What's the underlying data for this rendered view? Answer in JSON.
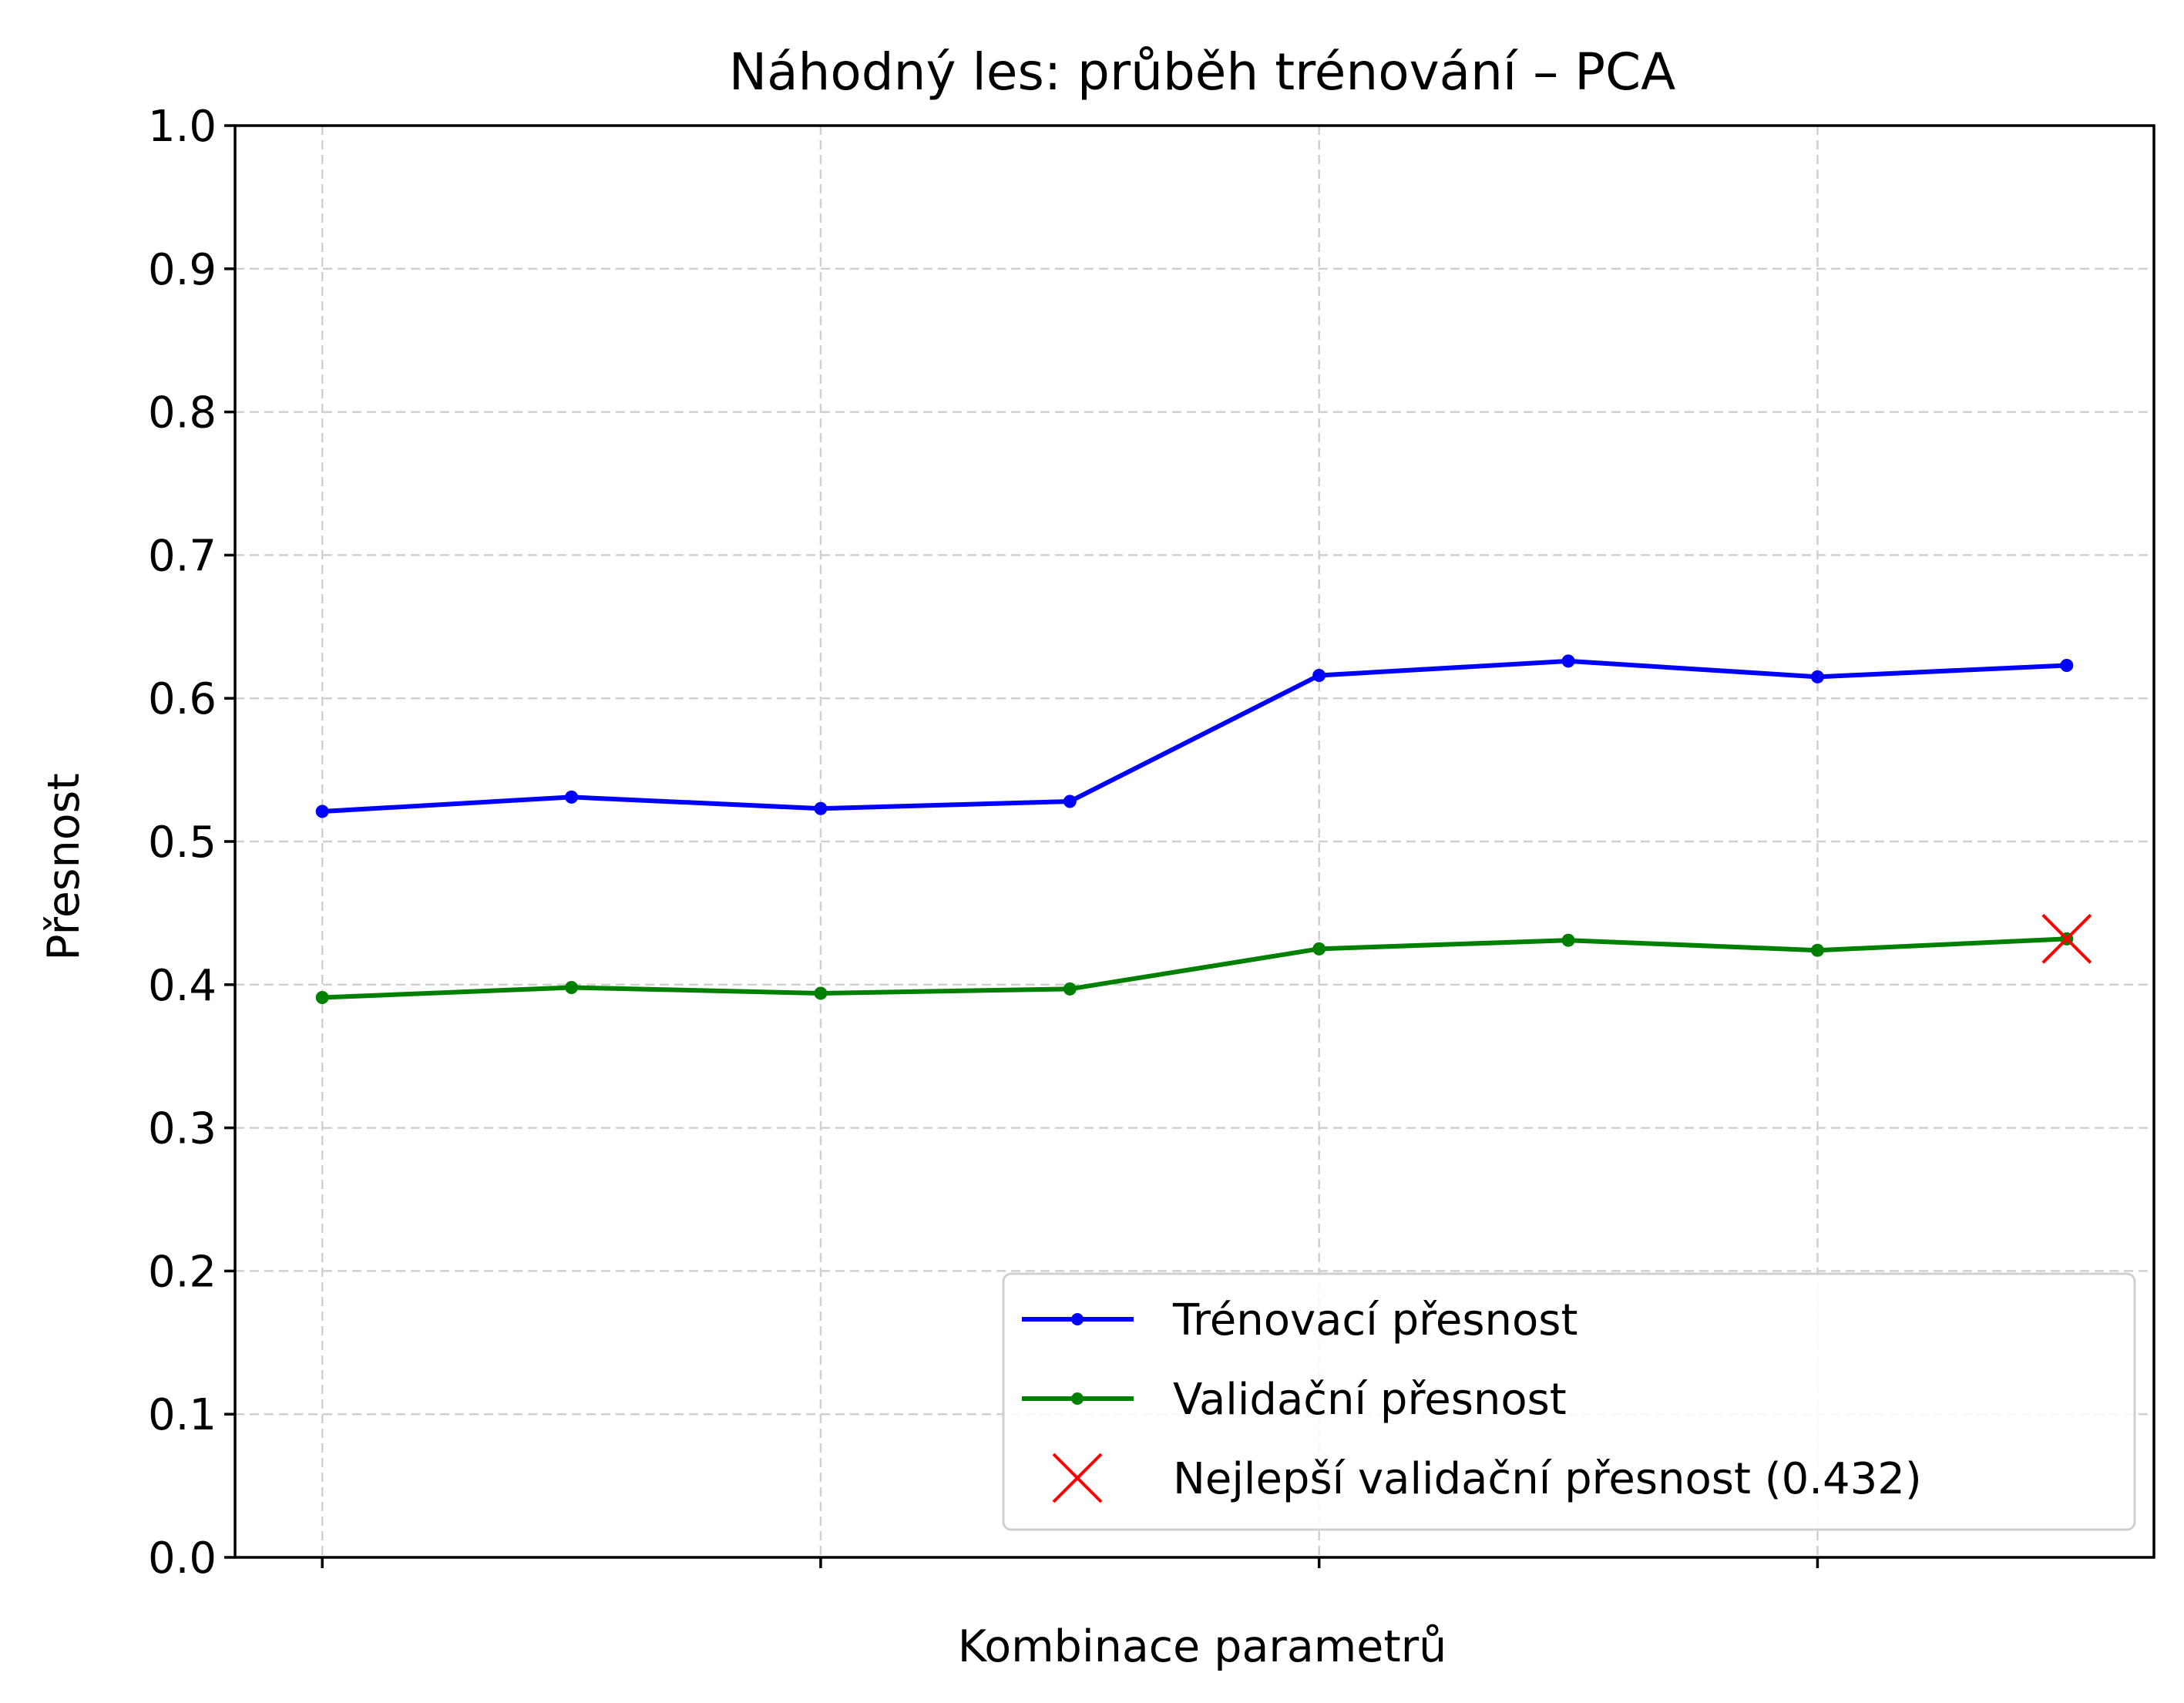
{
  "chart_data": {
    "type": "line",
    "title": "Náhodný les: průběh trénování – PCA",
    "xlabel": "Kombinace parametrů",
    "ylabel": "Přesnost",
    "x": [
      0,
      1,
      2,
      3,
      4,
      5,
      6,
      7
    ],
    "xlim": [
      -0.35,
      7.35
    ],
    "x_ticks": [
      0,
      2,
      4,
      6
    ],
    "x_tick_labels": [
      "",
      "",
      "",
      ""
    ],
    "ylim": [
      0.0,
      1.0
    ],
    "y_ticks": [
      0.0,
      0.1,
      0.2,
      0.3,
      0.4,
      0.5,
      0.6,
      0.7,
      0.8,
      0.9,
      1.0
    ],
    "y_tick_labels": [
      "0.0",
      "0.1",
      "0.2",
      "0.3",
      "0.4",
      "0.5",
      "0.6",
      "0.7",
      "0.8",
      "0.9",
      "1.0"
    ],
    "grid": true,
    "legend_position": "bottom-right",
    "series": [
      {
        "name": "Trénovací přesnost",
        "color": "#0000ff",
        "marker": "dot",
        "values": [
          0.521,
          0.531,
          0.523,
          0.528,
          0.616,
          0.626,
          0.615,
          0.623
        ]
      },
      {
        "name": "Validační přesnost",
        "color": "#008000",
        "marker": "dot",
        "values": [
          0.391,
          0.398,
          0.394,
          0.397,
          0.425,
          0.431,
          0.424,
          0.432
        ]
      }
    ],
    "best_point": {
      "name": "Nejlepší validační přesnost (0.432)",
      "color": "#ff0000",
      "marker": "x",
      "x": 7,
      "y": 0.432
    }
  }
}
